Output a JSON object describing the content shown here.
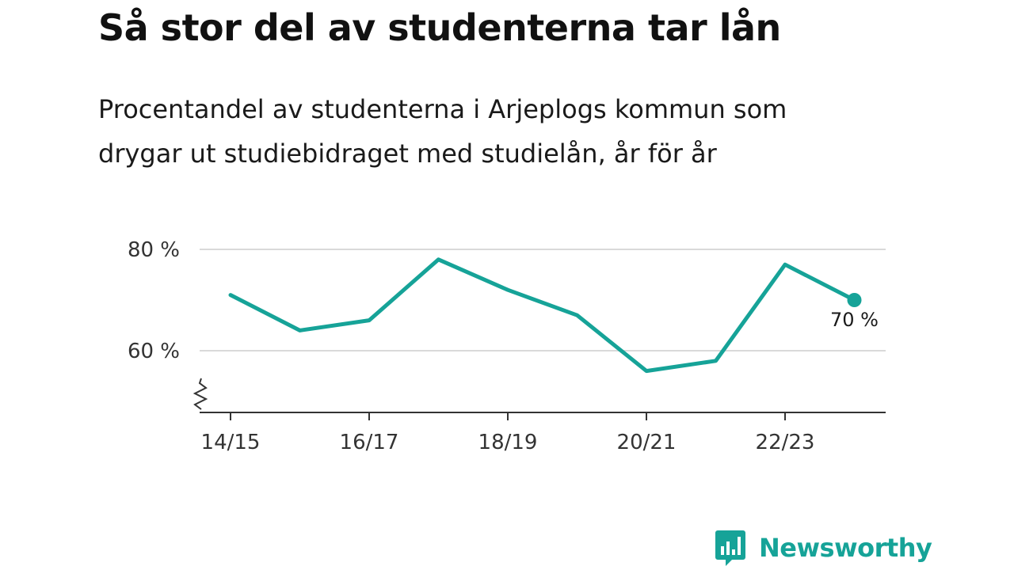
{
  "header": {
    "title": "Så stor del av studenterna tar lån",
    "subtitle_line1": "Procentandel av studenterna i Arjeplogs kommun som",
    "subtitle_line2": "drygar ut studiebidraget med studielån, år för år"
  },
  "brand": {
    "name": "Newsworthy",
    "color": "#16a398"
  },
  "colors": {
    "line": "#16a398",
    "grid": "#d9d9d9",
    "axis": "#333333"
  },
  "chart_data": {
    "type": "line",
    "title": "Så stor del av studenterna tar lån",
    "subtitle": "Procentandel av studenterna i Arjeplogs kommun som drygar ut studiebidraget med studielån, år för år",
    "categories": [
      "14/15",
      "15/16",
      "16/17",
      "17/18",
      "18/19",
      "19/20",
      "20/21",
      "21/22",
      "22/23",
      "23/24"
    ],
    "x_tick_labels": [
      "14/15",
      "16/17",
      "18/19",
      "20/21",
      "22/23"
    ],
    "series": [
      {
        "values": [
          71,
          64,
          66,
          78,
          72,
          67,
          56,
          58,
          77,
          70
        ]
      }
    ],
    "y_ticks": [
      60,
      80
    ],
    "y_tick_labels": [
      "60 %",
      "80 %"
    ],
    "ylim": [
      48,
      83
    ],
    "grid": true,
    "axis_break": true,
    "last_point_label": "70 %"
  }
}
